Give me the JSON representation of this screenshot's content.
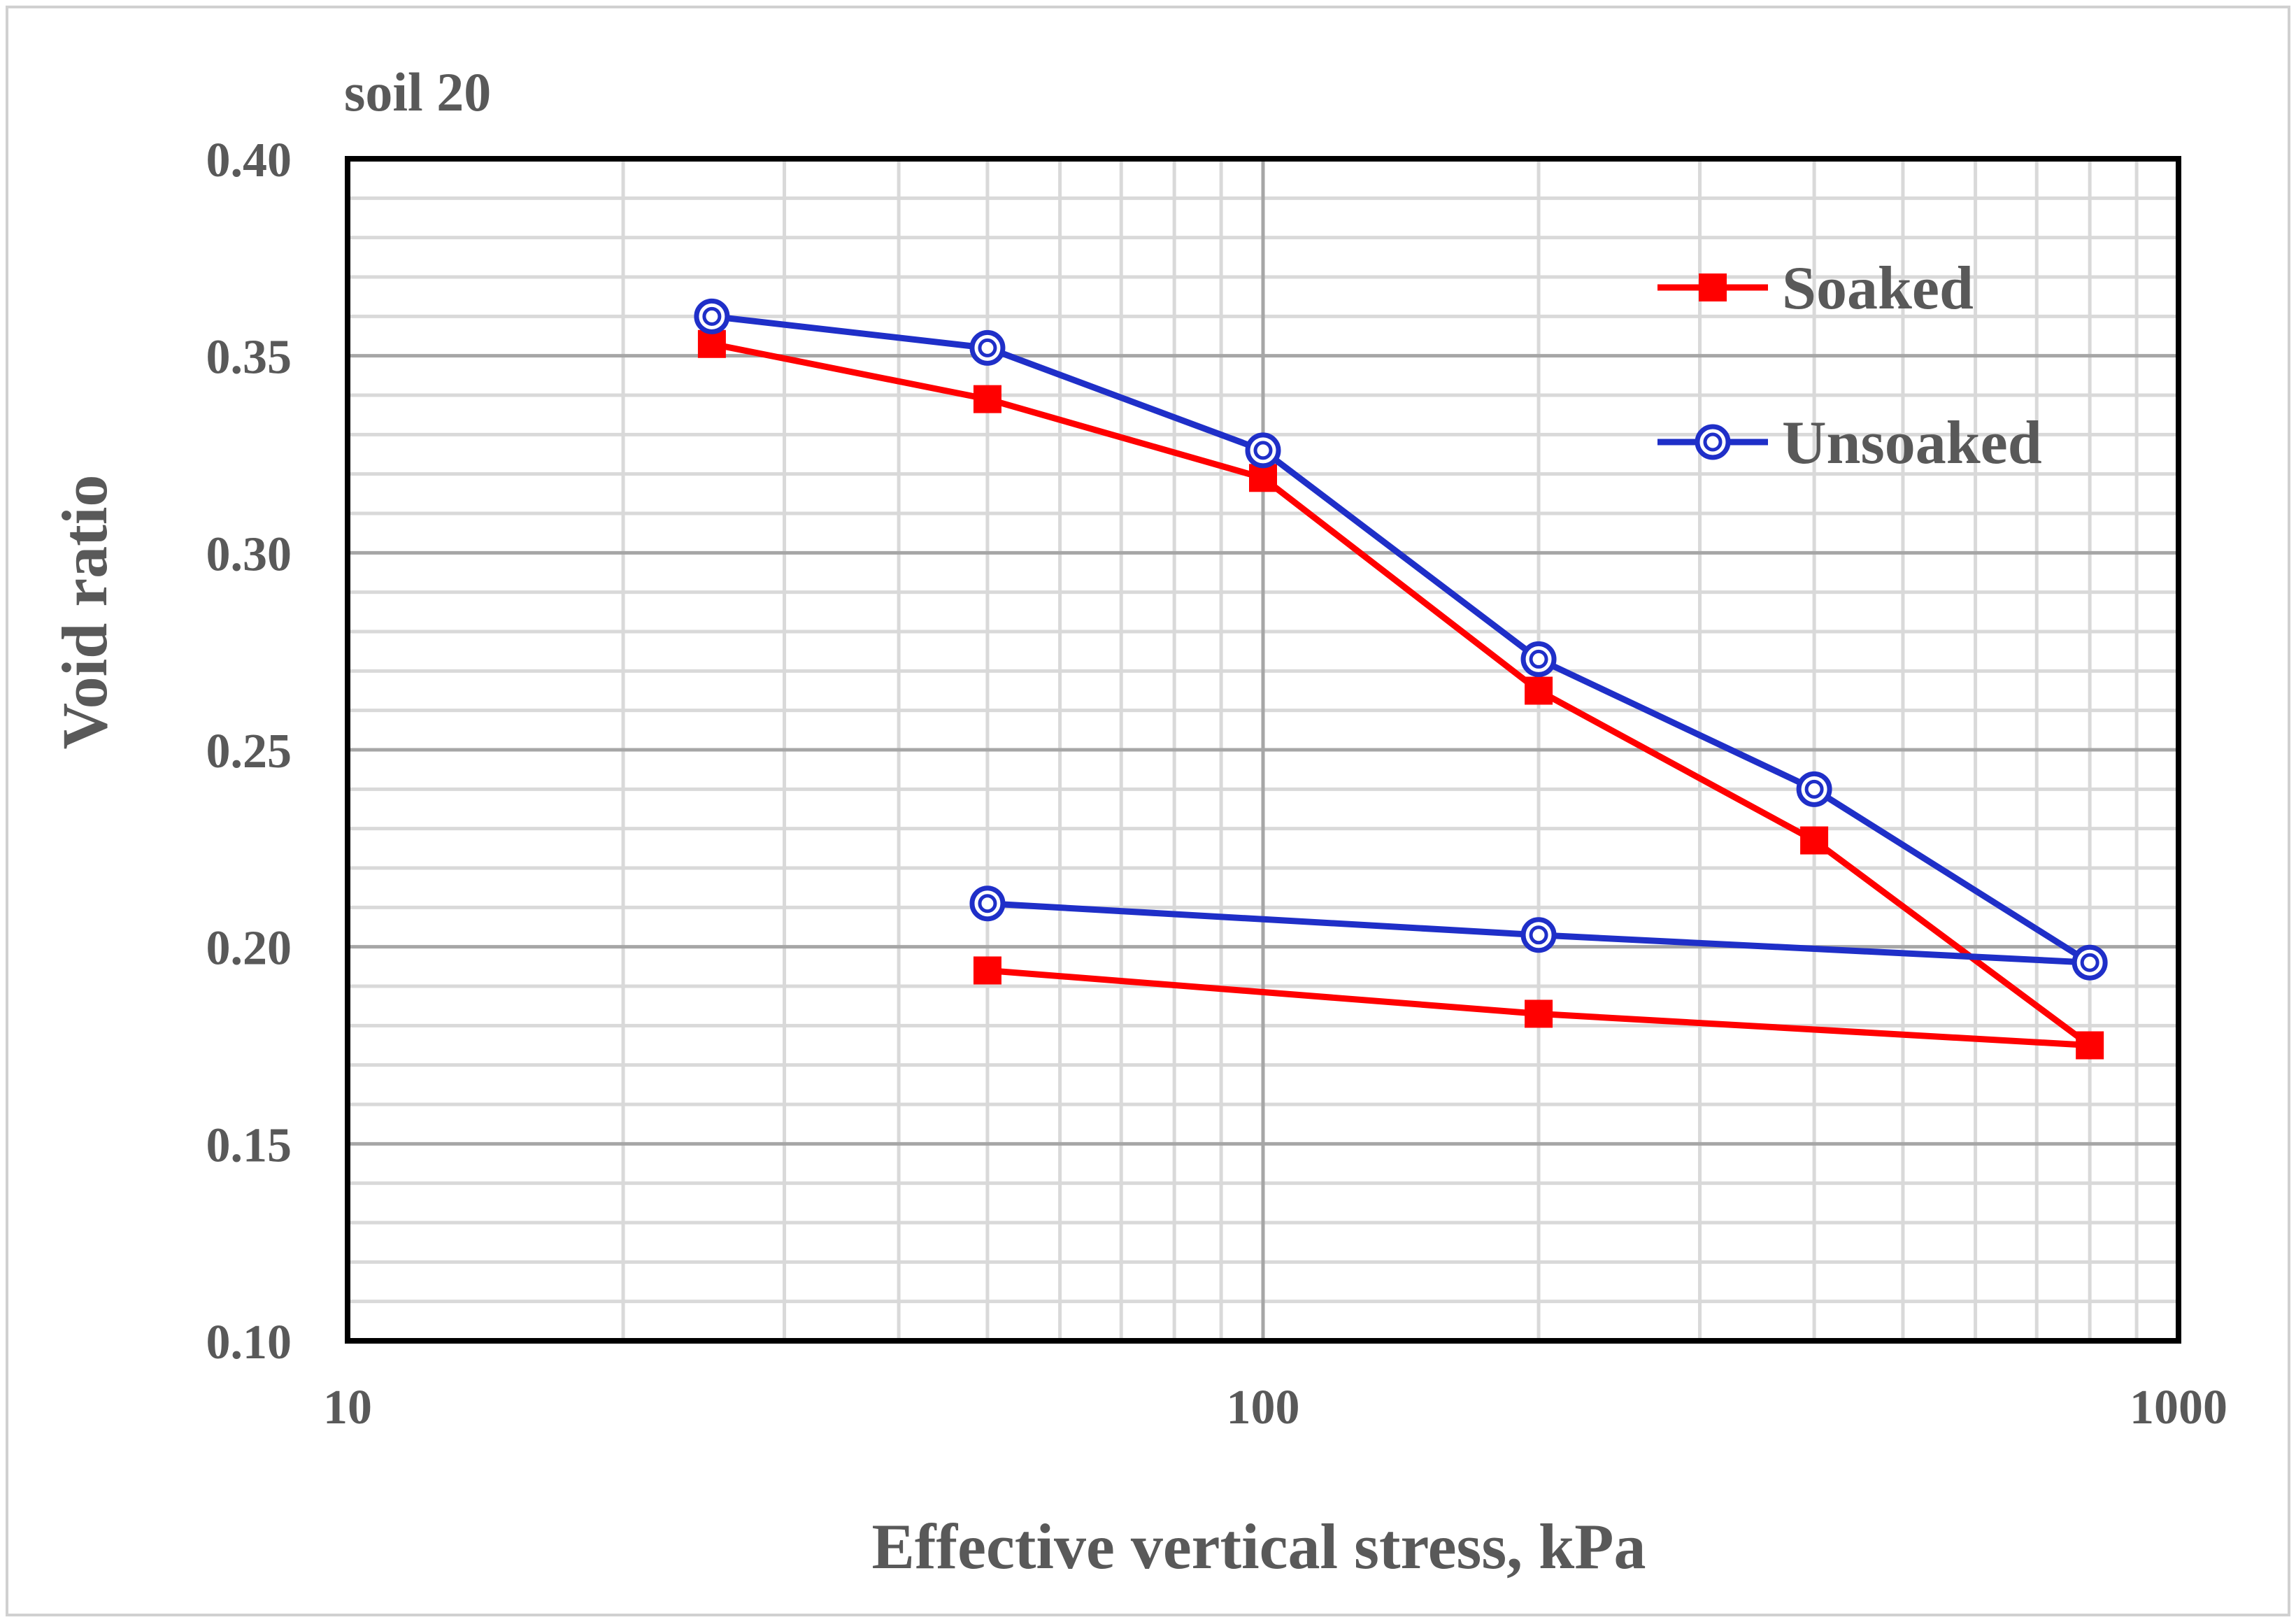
{
  "chart_data": {
    "type": "line",
    "title": "soil 20",
    "xlabel": "Effective vertical stress, kPa",
    "ylabel": "Void ratio",
    "xscale": "log",
    "xlim": [
      10,
      1000
    ],
    "ylim": [
      0.1,
      0.4
    ],
    "xticks": [
      10,
      100,
      1000
    ],
    "xtick_labels": [
      "10",
      "100",
      "1000"
    ],
    "yticks": [
      0.1,
      0.15,
      0.2,
      0.25,
      0.3,
      0.35,
      0.4
    ],
    "ytick_labels": [
      "0.10",
      "0.15",
      "0.20",
      "0.25",
      "0.30",
      "0.35",
      "0.40"
    ],
    "grid": true,
    "legend_position": "top-right",
    "series": [
      {
        "name": "Soaked",
        "color": "#ff0000",
        "marker": "square",
        "x": [
          25,
          50,
          100,
          200,
          400,
          800,
          200,
          50
        ],
        "y": [
          0.353,
          0.339,
          0.319,
          0.265,
          0.227,
          0.175,
          0.183,
          0.194
        ]
      },
      {
        "name": "Unsoaked",
        "color": "#1f2fc8",
        "marker": "double-circle",
        "x": [
          25,
          50,
          100,
          200,
          400,
          800,
          200,
          50
        ],
        "y": [
          0.36,
          0.352,
          0.326,
          0.273,
          0.24,
          0.196,
          0.203,
          0.211
        ]
      }
    ]
  }
}
